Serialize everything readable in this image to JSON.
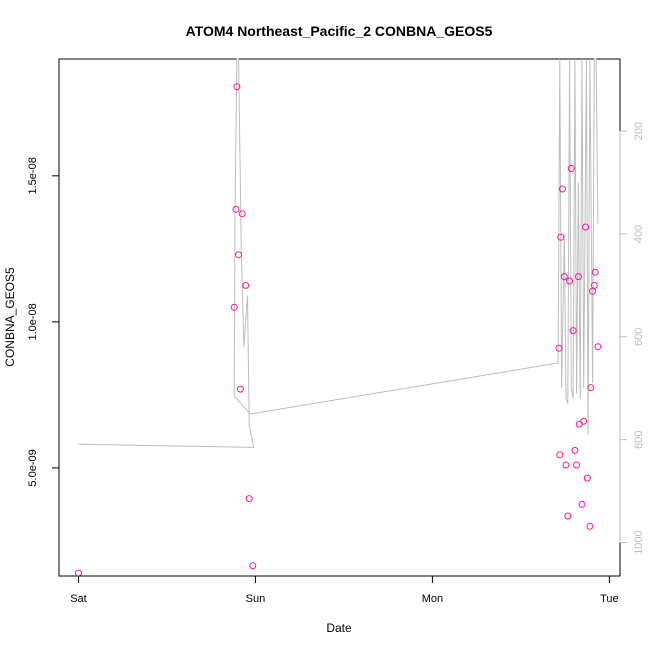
{
  "chart_data": {
    "type": "scatter",
    "title": "ATOM4 Northeast_Pacific_2 CONBNA_GEOS5",
    "xlabel": "Date",
    "ylabel": "CONBNA_GEOS5",
    "x_ticks": [
      {
        "label": "Sat",
        "day": 0
      },
      {
        "label": "Sun",
        "day": 1
      },
      {
        "label": "Mon",
        "day": 2
      },
      {
        "label": "Tue",
        "day": 3
      }
    ],
    "y_ticks": [
      {
        "label": "5.0e-09",
        "value": 5e-09
      },
      {
        "label": "1.0e-08",
        "value": 1e-08
      },
      {
        "label": "1.5e-08",
        "value": 1.5e-08
      }
    ],
    "y2_ticks": [
      {
        "label": "200",
        "value": 200
      },
      {
        "label": "400",
        "value": 400
      },
      {
        "label": "600",
        "value": 600
      },
      {
        "label": "800",
        "value": 800
      },
      {
        "label": "1000",
        "value": 1000
      }
    ],
    "xlim_days": [
      -0.11,
      3.06
    ],
    "ylim": [
      1.3e-09,
      1.9e-08
    ],
    "y2lim": [
      1065,
      60
    ],
    "y2_reversed": true,
    "point_color": "#ff1493",
    "line_color": "#bdbdbd",
    "series": [
      {
        "points": [
          {
            "day": 0.0,
            "y": 1.4e-09
          },
          {
            "day": 0.88,
            "y": 1.05e-08
          },
          {
            "day": 0.89,
            "y": 1.385e-08
          },
          {
            "day": 0.895,
            "y": 1.805e-08
          },
          {
            "day": 0.905,
            "y": 1.23e-08
          },
          {
            "day": 0.915,
            "y": 7.7e-09
          },
          {
            "day": 0.925,
            "y": 1.37e-08
          },
          {
            "day": 0.945,
            "y": 1.125e-08
          },
          {
            "day": 0.965,
            "y": 3.95e-09
          },
          {
            "day": 0.985,
            "y": 1.65e-09
          },
          {
            "day": 2.715,
            "y": 9.1e-09
          },
          {
            "day": 2.72,
            "y": 5.45e-09
          },
          {
            "day": 2.725,
            "y": 1.29e-08
          },
          {
            "day": 2.735,
            "y": 1.455e-08
          },
          {
            "day": 2.745,
            "y": 1.155e-08
          },
          {
            "day": 2.755,
            "y": 5.1e-09
          },
          {
            "day": 2.765,
            "y": 3.35e-09
          },
          {
            "day": 2.775,
            "y": 1.14e-08
          },
          {
            "day": 2.785,
            "y": 1.525e-08
          },
          {
            "day": 2.795,
            "y": 9.7e-09
          },
          {
            "day": 2.805,
            "y": 5.6e-09
          },
          {
            "day": 2.815,
            "y": 5.1e-09
          },
          {
            "day": 2.825,
            "y": 1.155e-08
          },
          {
            "day": 2.83,
            "y": 6.5e-09
          },
          {
            "day": 2.845,
            "y": 3.75e-09
          },
          {
            "day": 2.855,
            "y": 6.6e-09
          },
          {
            "day": 2.865,
            "y": 1.325e-08
          },
          {
            "day": 2.875,
            "y": 4.65e-09
          },
          {
            "day": 2.89,
            "y": 3e-09
          },
          {
            "day": 2.895,
            "y": 7.75e-09
          },
          {
            "day": 2.905,
            "y": 1.105e-08
          },
          {
            "day": 2.915,
            "y": 1.125e-08
          },
          {
            "day": 2.92,
            "y": 1.17e-08
          },
          {
            "day": 2.935,
            "y": 9.15e-09
          }
        ]
      },
      {
        "axis": "right",
        "line": [
          {
            "day": 0.0,
            "y2": 809
          },
          {
            "day": 0.005,
            "y2": 809
          },
          {
            "day": 0.99,
            "y2": 815
          },
          {
            "day": 0.965,
            "y2": 772
          },
          {
            "day": 0.955,
            "y2": 520
          },
          {
            "day": 0.935,
            "y2": 620
          },
          {
            "day": 0.92,
            "y2": 435
          },
          {
            "day": 0.905,
            "y2": 60
          },
          {
            "day": 0.895,
            "y2": 60
          },
          {
            "day": 0.885,
            "y2": 340
          },
          {
            "day": 0.88,
            "y2": 715
          },
          {
            "day": 0.97,
            "y2": 750
          },
          {
            "day": 2.71,
            "y2": 651
          },
          {
            "day": 2.72,
            "y2": 60
          },
          {
            "day": 2.73,
            "y2": 700
          },
          {
            "day": 2.745,
            "y2": 400
          },
          {
            "day": 2.755,
            "y2": 720
          },
          {
            "day": 2.765,
            "y2": 730
          },
          {
            "day": 2.775,
            "y2": 60
          },
          {
            "day": 2.785,
            "y2": 700
          },
          {
            "day": 2.795,
            "y2": 720
          },
          {
            "day": 2.805,
            "y2": 60
          },
          {
            "day": 2.815,
            "y2": 710
          },
          {
            "day": 2.825,
            "y2": 300
          },
          {
            "day": 2.835,
            "y2": 720
          },
          {
            "day": 2.845,
            "y2": 60
          },
          {
            "day": 2.855,
            "y2": 700
          },
          {
            "day": 2.87,
            "y2": 60
          },
          {
            "day": 2.88,
            "y2": 790
          },
          {
            "day": 2.89,
            "y2": 60
          },
          {
            "day": 2.905,
            "y2": 690
          },
          {
            "day": 2.915,
            "y2": 60
          },
          {
            "day": 2.925,
            "y2": 60
          },
          {
            "day": 2.935,
            "y2": 380
          }
        ]
      }
    ]
  }
}
